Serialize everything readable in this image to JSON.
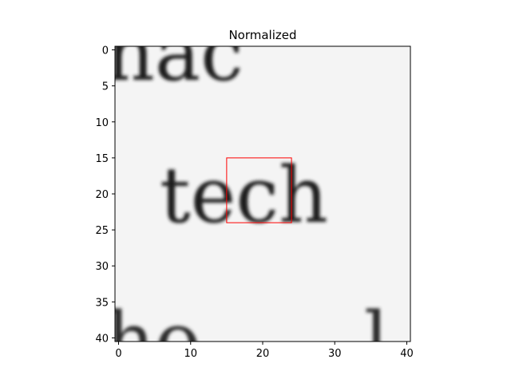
{
  "chart_data": {
    "type": "heatmap",
    "title": "Normalized",
    "xlabel": "",
    "ylabel": "",
    "grid": false,
    "colormap": "gray",
    "image_size": [
      41,
      41
    ],
    "x_ticks": [
      0,
      10,
      20,
      30,
      40
    ],
    "y_ticks": [
      0,
      5,
      10,
      15,
      20,
      25,
      30,
      35,
      40
    ],
    "xlim": [
      -0.5,
      40.5
    ],
    "ylim": [
      40.5,
      -0.5
    ],
    "highlight_rect": {
      "x0": 15,
      "y0": 15,
      "x1": 24,
      "y1": 24,
      "color": "#ff0000"
    }
  }
}
